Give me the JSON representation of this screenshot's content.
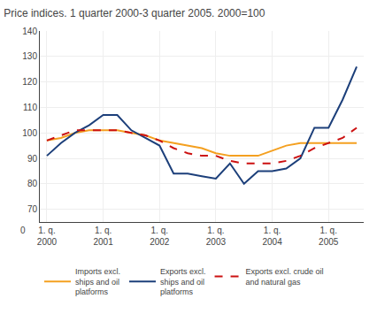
{
  "chart_data": {
    "type": "line",
    "title": "Price indices. 1 quarter 2000-3 quarter 2005. 2000=100",
    "categories": [
      "1. q.\n2000",
      null,
      null,
      null,
      "1. q.\n2001",
      null,
      null,
      null,
      "1. q.\n2002",
      null,
      null,
      null,
      "1. q.\n2003",
      null,
      null,
      null,
      "1. q.\n2004",
      null,
      null,
      null,
      "1. q.\n2005",
      null,
      null
    ],
    "series": [
      {
        "name": "Imports excl.\nships and oil\nplatforms",
        "color": "#F4A020",
        "line_style": "solid",
        "values": [
          97,
          98,
          100,
          101,
          101,
          101,
          100,
          99,
          97,
          96,
          95,
          94,
          92,
          91,
          91,
          91,
          93,
          95,
          96,
          96,
          96,
          96,
          96
        ]
      },
      {
        "name": "Exports excl.\nships and oil\nplatforms",
        "color": "#1C3F7A",
        "line_style": "solid",
        "values": [
          91,
          96,
          100,
          103,
          107,
          107,
          101,
          98,
          95,
          84,
          84,
          83,
          82,
          88,
          80,
          85,
          85,
          86,
          90,
          102,
          102,
          113,
          126
        ]
      },
      {
        "name": "Exports excl. crude oil\nand natural gas",
        "color": "#CC1111",
        "line_style": "dashed",
        "values": [
          97,
          99,
          101,
          101,
          101,
          101,
          100,
          99,
          97,
          94,
          92,
          91,
          91,
          89,
          88,
          88,
          88,
          89,
          91,
          94,
          96,
          98,
          102
        ]
      }
    ],
    "ylim": [
      65,
      140
    ],
    "yticks": [
      70,
      80,
      90,
      100,
      110,
      120,
      130,
      140
    ],
    "grid": true,
    "legend": "bottom",
    "annotations": [
      {
        "text": "0"
      }
    ]
  }
}
